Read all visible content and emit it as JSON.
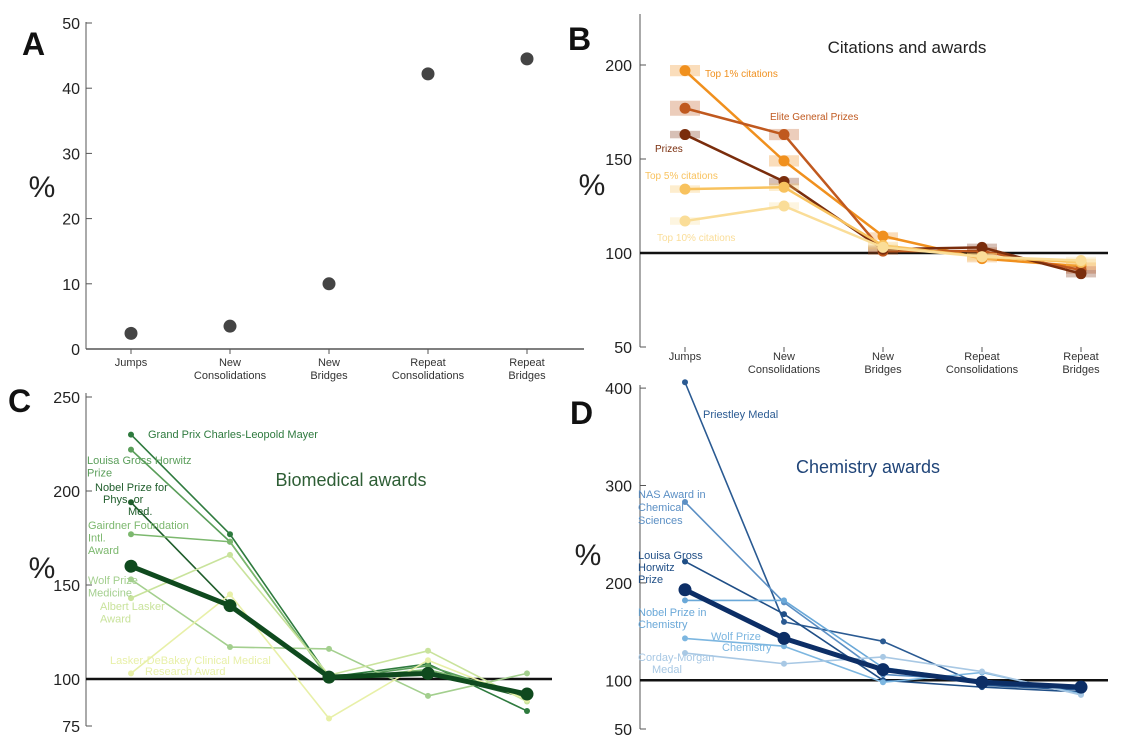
{
  "chart_data": [
    {
      "panel": "A",
      "type": "scatter",
      "ylabel": "%",
      "ylim": [
        0,
        50
      ],
      "yticks": [
        0,
        10,
        20,
        30,
        40,
        50
      ],
      "categories": [
        "Jumps",
        "New Consolidations",
        "New Bridges",
        "Repeat Consolidations",
        "Repeat Bridges"
      ],
      "category_lines": [
        [
          "Jumps"
        ],
        [
          "New",
          "Consolidations"
        ],
        [
          "New",
          "Bridges"
        ],
        [
          "Repeat",
          "Consolidations"
        ],
        [
          "Repeat",
          "Bridges"
        ]
      ],
      "values": [
        2.4,
        3.5,
        10,
        42.2,
        44.5
      ],
      "color": "#444444"
    },
    {
      "panel": "B",
      "type": "line",
      "title": "Citations and awards",
      "ylabel": "%",
      "ylim": [
        50,
        225
      ],
      "yticks": [
        50,
        100,
        150,
        200
      ],
      "reference_line": 100,
      "categories": [
        "Jumps",
        "New Consolidations",
        "New Bridges",
        "Repeat Consolidations",
        "Repeat Bridges"
      ],
      "category_lines": [
        [
          "Jumps"
        ],
        [
          "New",
          "Consolidations"
        ],
        [
          "New",
          "Bridges"
        ],
        [
          "Repeat",
          "Consolidations"
        ],
        [
          "Repeat",
          "Bridges"
        ]
      ],
      "series": [
        {
          "name": "Top 1% citations",
          "values": [
            197,
            149,
            109,
            97,
            93
          ],
          "color": "#f0901e",
          "error": [
            3,
            3,
            2,
            2,
            2
          ]
        },
        {
          "name": "Elite General Prizes",
          "values": [
            177,
            163,
            101,
            101,
            91
          ],
          "color": "#c0591f",
          "error": [
            4,
            3,
            2,
            2,
            2
          ]
        },
        {
          "name": "Prizes",
          "values": [
            163,
            138,
            102,
            103,
            89
          ],
          "color": "#7a2d0c",
          "error": [
            2,
            2,
            2,
            2,
            2
          ]
        },
        {
          "name": "Top 5% citations",
          "values": [
            134,
            135,
            104,
            98,
            95
          ],
          "color": "#f8c25e",
          "error": [
            2,
            2,
            2,
            2,
            2
          ]
        },
        {
          "name": "Top 10% citations",
          "values": [
            117,
            125,
            103,
            98,
            96
          ],
          "color": "#fadd98",
          "error": [
            2,
            2,
            2,
            2,
            2
          ]
        }
      ]
    },
    {
      "panel": "C",
      "type": "line",
      "title": "Biomedical awards",
      "ylabel": "%",
      "ylim": [
        75,
        250
      ],
      "yticks": [
        75,
        100,
        150,
        200,
        250
      ],
      "reference_line": 100,
      "categories": [
        "Jumps",
        "New Consolidations",
        "New Bridges",
        "Repeat Consolidations",
        "Repeat Bridges"
      ],
      "series": [
        {
          "name": "Grand Prix Charles-Leopold Mayer",
          "values": [
            230,
            177,
            101,
            108,
            83
          ],
          "color": "#2e7a3e"
        },
        {
          "name": "Louisa Gross Horwitz Prize",
          "values": [
            222,
            173,
            100,
            107,
            90
          ],
          "color": "#5a9e5a"
        },
        {
          "name": "Nobel Prize for Phys. or Med.",
          "values": [
            194,
            140,
            100,
            103,
            90
          ],
          "color": "#1f5d2b"
        },
        {
          "name": "Gairdner Foundation Intl. Award",
          "values": [
            177,
            173,
            100,
            105,
            92
          ],
          "color": "#7cb86e"
        },
        {
          "name": "Wolf Prize Medicine",
          "values": [
            153,
            117,
            116,
            91,
            103
          ],
          "color": "#a3cf8e"
        },
        {
          "name": "Albert Lasker Award",
          "values": [
            143,
            166,
            102,
            115,
            88
          ],
          "color": "#c9e39c"
        },
        {
          "name": "Lasker-DeBakey Clinical Medical Research Award",
          "values": [
            103,
            145,
            79,
            110,
            89
          ],
          "color": "#e8f0a8"
        },
        {
          "name": "",
          "values": [
            160,
            139,
            101,
            103,
            92
          ],
          "color": "#0f4a1e",
          "bold": true
        }
      ]
    },
    {
      "panel": "D",
      "type": "line",
      "title": "Chemistry awards",
      "ylabel": "%",
      "ylim": [
        50,
        400
      ],
      "yticks": [
        50,
        100,
        200,
        300,
        400
      ],
      "reference_line": 100,
      "categories": [
        "Jumps",
        "New Consolidations",
        "New Bridges",
        "Repeat Consolidations",
        "Repeat Bridges"
      ],
      "series": [
        {
          "name": "Priestley Medal",
          "values": [
            406,
            160,
            140,
            95,
            90
          ],
          "color": "#2a5a92"
        },
        {
          "name": "NAS Award in Chemical Sciences",
          "values": [
            283,
            180,
            106,
            100,
            91
          ],
          "color": "#5b8fc4"
        },
        {
          "name": "Louisa Gross Horwitz Prize",
          "values": [
            222,
            168,
            100,
            93,
            88
          ],
          "color": "#1f4e86"
        },
        {
          "name": "Nobel Prize in Chemistry",
          "values": [
            182,
            182,
            113,
            99,
            93
          ],
          "color": "#6aa8d8"
        },
        {
          "name": "Wolf Prize Chemistry",
          "values": [
            143,
            135,
            98,
            108,
            86
          ],
          "color": "#7cb6e0"
        },
        {
          "name": "Corday-Morgan Medal",
          "values": [
            128,
            117,
            124,
            109,
            85
          ],
          "color": "#a8c8e4"
        },
        {
          "name": "",
          "values": [
            193,
            143,
            111,
            98,
            93
          ],
          "color": "#0c2e66",
          "bold": true
        }
      ]
    }
  ],
  "panel_letters": [
    "A",
    "B",
    "C",
    "D"
  ]
}
